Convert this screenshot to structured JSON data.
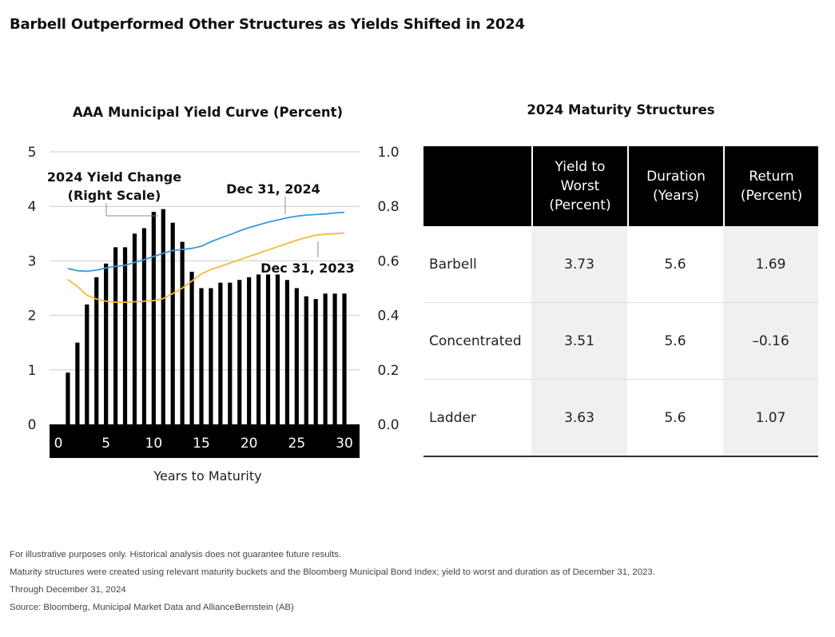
{
  "title": "Barbell Outperformed Other Structures as Yields Shifted in 2024",
  "chart_data": {
    "type": "bar+line",
    "title": "AAA Municipal Yield Curve (Percent)",
    "xlabel": "Years to Maturity",
    "x_ticks": [
      0,
      5,
      10,
      15,
      20,
      25,
      30
    ],
    "xlim": [
      0,
      31
    ],
    "left_axis": {
      "ylim": [
        0,
        5
      ],
      "ticks": [
        "0",
        "1",
        "2",
        "3",
        "4",
        "5"
      ]
    },
    "right_axis": {
      "ylim": [
        0,
        1
      ],
      "ticks": [
        "0.0",
        "0.2",
        "0.4",
        "0.6",
        "0.8",
        "1.0"
      ]
    },
    "grid": true,
    "bar_series": {
      "name": "2024 Yield Change (Right Scale)",
      "name_lines": [
        "2024 Yield Change",
        "(Right Scale)"
      ],
      "axis": "right",
      "color": "#000000",
      "x": [
        1,
        2,
        3,
        4,
        5,
        6,
        7,
        8,
        9,
        10,
        11,
        12,
        13,
        14,
        15,
        16,
        17,
        18,
        19,
        20,
        21,
        22,
        23,
        24,
        25,
        26,
        27,
        28,
        29,
        30
      ],
      "values": [
        0.19,
        0.3,
        0.44,
        0.54,
        0.59,
        0.65,
        0.65,
        0.7,
        0.72,
        0.78,
        0.79,
        0.74,
        0.67,
        0.56,
        0.5,
        0.5,
        0.52,
        0.52,
        0.53,
        0.54,
        0.55,
        0.55,
        0.55,
        0.53,
        0.5,
        0.47,
        0.46,
        0.48,
        0.48,
        0.48
      ]
    },
    "line_series": [
      {
        "name": "Dec 31, 2024",
        "axis": "left",
        "color": "#3a9ad9",
        "x": [
          1,
          2,
          3,
          4,
          5,
          6,
          7,
          8,
          9,
          10,
          11,
          12,
          13,
          14,
          15,
          16,
          17,
          18,
          19,
          20,
          21,
          22,
          23,
          24,
          25,
          26,
          27,
          28,
          29,
          30
        ],
        "values": [
          2.86,
          2.82,
          2.81,
          2.83,
          2.87,
          2.9,
          2.92,
          2.97,
          3.02,
          3.08,
          3.14,
          3.19,
          3.21,
          3.23,
          3.27,
          3.35,
          3.42,
          3.48,
          3.55,
          3.61,
          3.66,
          3.71,
          3.75,
          3.79,
          3.82,
          3.84,
          3.85,
          3.86,
          3.88,
          3.89
        ]
      },
      {
        "name": "Dec 31, 2023",
        "axis": "left",
        "color": "#f2bb3a",
        "x": [
          1,
          2,
          3,
          4,
          5,
          6,
          7,
          8,
          9,
          10,
          11,
          12,
          13,
          14,
          15,
          16,
          17,
          18,
          19,
          20,
          21,
          22,
          23,
          24,
          25,
          26,
          27,
          28,
          29,
          30
        ],
        "values": [
          2.66,
          2.53,
          2.37,
          2.3,
          2.26,
          2.24,
          2.24,
          2.25,
          2.26,
          2.27,
          2.31,
          2.4,
          2.5,
          2.63,
          2.76,
          2.84,
          2.9,
          2.96,
          3.02,
          3.08,
          3.14,
          3.2,
          3.26,
          3.32,
          3.38,
          3.43,
          3.47,
          3.49,
          3.5,
          3.51
        ]
      }
    ],
    "annotations": [
      "2024 Yield Change",
      "(Right Scale)",
      "Dec 31, 2024",
      "Dec 31, 2023"
    ]
  },
  "table": {
    "title": "2024 Maturity Structures",
    "headers": [
      {
        "lines": [
          ""
        ]
      },
      {
        "lines": [
          "Yield to",
          "Worst",
          "(Percent)"
        ]
      },
      {
        "lines": [
          "Duration",
          "(Years)"
        ]
      },
      {
        "lines": [
          "Return",
          "(Percent)"
        ]
      }
    ],
    "rows": [
      {
        "label": "Barbell",
        "yield": "3.73",
        "duration": "5.6",
        "return": "1.69"
      },
      {
        "label": "Concentrated",
        "yield": "3.51",
        "duration": "5.6",
        "return": "–0.16"
      },
      {
        "label": "Ladder",
        "yield": "3.63",
        "duration": "5.6",
        "return": "1.07"
      }
    ]
  },
  "notes": [
    "For illustrative purposes only. Historical analysis does not guarantee future results.",
    "Maturity structures were created using relevant maturity buckets and the Bloomberg Municipal Bond Index; yield to worst and duration as of December 31, 2023.",
    "Through December 31, 2024",
    "Source: Bloomberg, Municipal Market Data and AllianceBernstein (AB)"
  ]
}
